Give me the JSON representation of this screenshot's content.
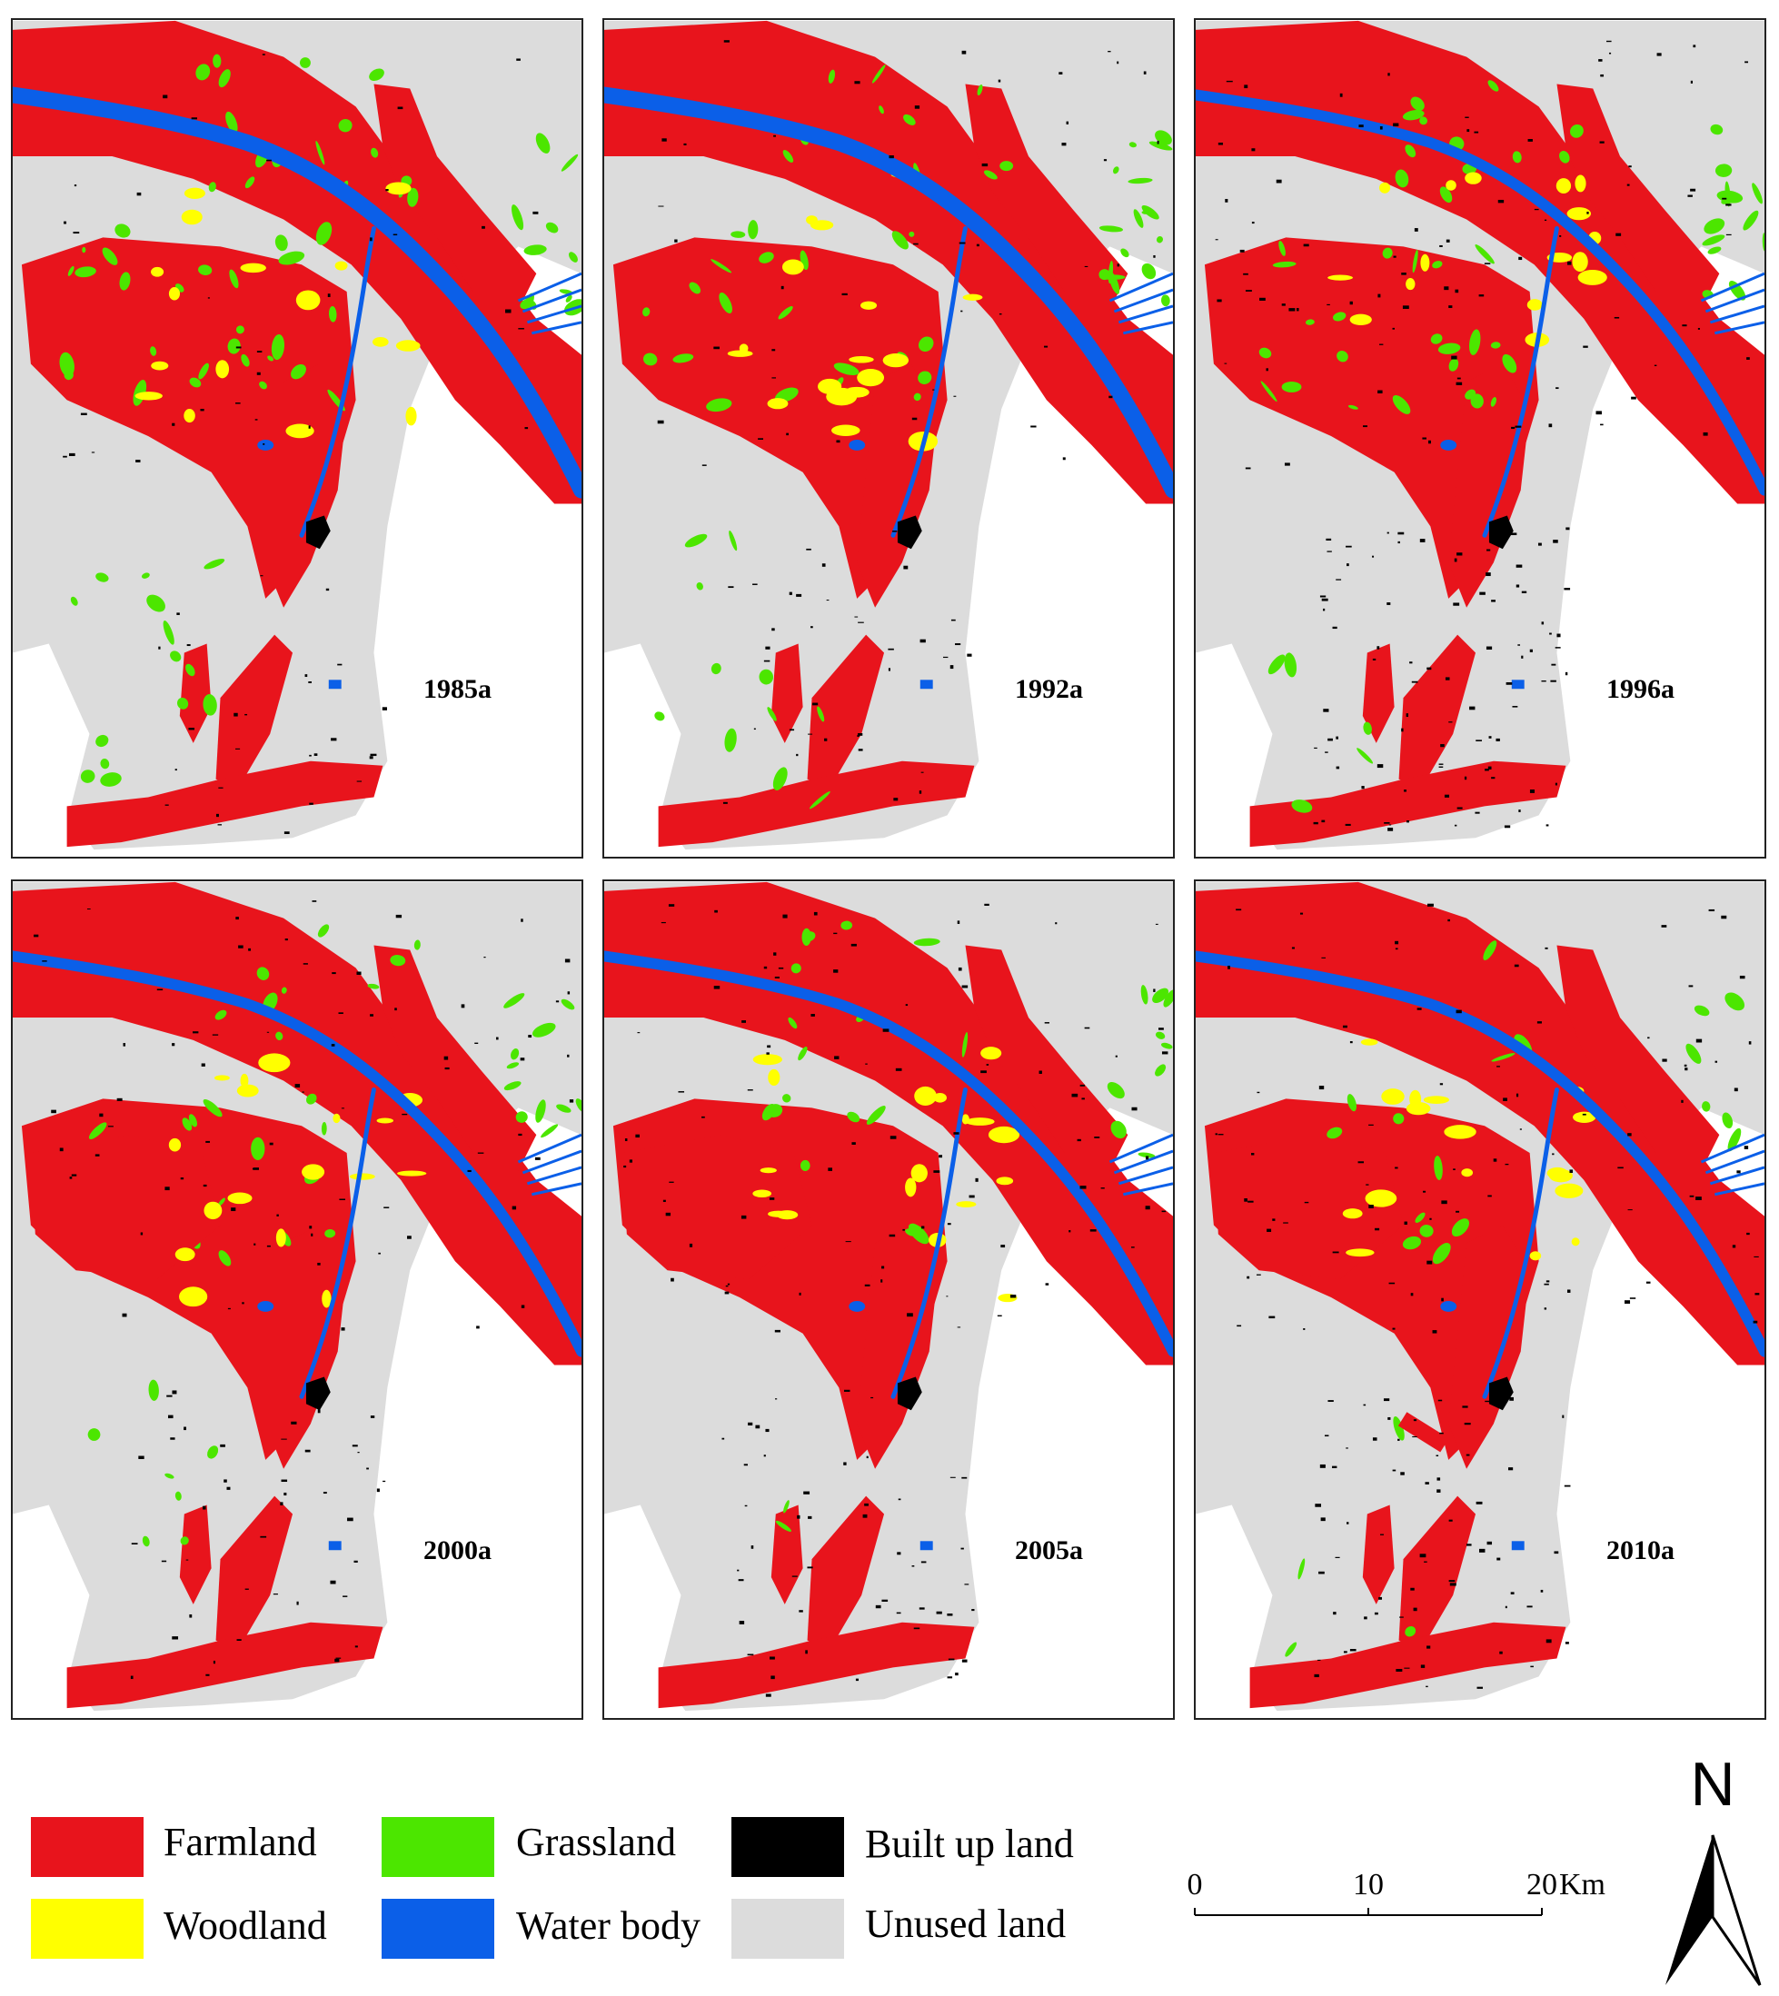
{
  "panels": [
    {
      "year": "1985a"
    },
    {
      "year": "1992a"
    },
    {
      "year": "1996a"
    },
    {
      "year": "2000a"
    },
    {
      "year": "2005a"
    },
    {
      "year": "2010a"
    }
  ],
  "legend": [
    {
      "label": "Farmland",
      "color": "#e8141c"
    },
    {
      "label": "Woodland",
      "color": "#ffff00"
    },
    {
      "label": "Grassland",
      "color": "#4ce600"
    },
    {
      "label": "Water body",
      "color": "#0b5fe8"
    },
    {
      "label": "Built up land",
      "color": "#000000"
    },
    {
      "label": "Unused land",
      "color": "#dcdcdc"
    }
  ],
  "scale_bar": {
    "ticks": [
      "0",
      "10",
      "20"
    ],
    "unit": "Km"
  },
  "north_arrow": {
    "label": "N"
  },
  "colors": {
    "farmland": "#e8141c",
    "woodland": "#ffff00",
    "grassland": "#4ce600",
    "water": "#0b5fe8",
    "builtup": "#000000",
    "unused": "#dcdcdc"
  }
}
